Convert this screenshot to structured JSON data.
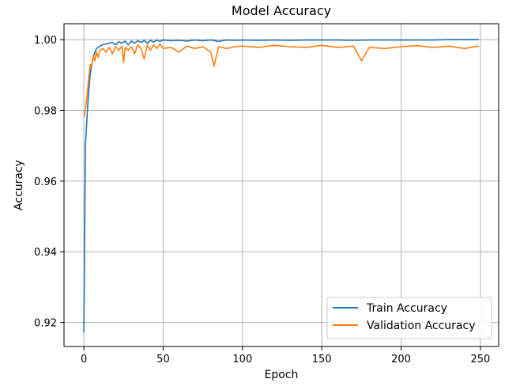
{
  "chart_data": {
    "type": "line",
    "title": "Model Accuracy",
    "xlabel": "Epoch",
    "ylabel": "Accuracy",
    "xlim": [
      -12.5,
      261.5
    ],
    "ylim": [
      0.9132,
      1.0045
    ],
    "xticks": [
      0,
      50,
      100,
      150,
      200,
      250
    ],
    "yticks": [
      0.92,
      0.94,
      0.96,
      0.98,
      1.0
    ],
    "ytick_labels": [
      "0.92",
      "0.94",
      "0.96",
      "0.98",
      "1.00"
    ],
    "grid": true,
    "legend_position": "bottom-right",
    "series": [
      {
        "name": "Train Accuracy",
        "color": "#1f77b4",
        "x": [
          0,
          1,
          2,
          3,
          4,
          5,
          6,
          7,
          8,
          9,
          10,
          12,
          14,
          16,
          18,
          20,
          22,
          24,
          26,
          28,
          30,
          32,
          34,
          36,
          38,
          40,
          42,
          44,
          46,
          48,
          50,
          55,
          60,
          65,
          70,
          75,
          80,
          85,
          90,
          95,
          100,
          110,
          120,
          130,
          140,
          150,
          160,
          170,
          180,
          190,
          200,
          210,
          220,
          230,
          240,
          249
        ],
        "values": [
          0.9172,
          0.97,
          0.978,
          0.985,
          0.99,
          0.993,
          0.995,
          0.9965,
          0.9975,
          0.9978,
          0.9982,
          0.9986,
          0.9988,
          0.999,
          0.9992,
          0.9985,
          0.9994,
          0.999,
          0.9996,
          0.9985,
          0.9996,
          0.999,
          0.9997,
          0.9992,
          0.9998,
          0.999,
          0.9998,
          0.9993,
          0.9999,
          0.9995,
          0.9999,
          0.9997,
          0.9998,
          0.9996,
          0.9999,
          0.9997,
          0.9999,
          0.9995,
          0.9999,
          0.9998,
          0.9999,
          0.9998,
          0.9999,
          0.9998,
          0.9999,
          0.9999,
          0.9999,
          0.9998,
          0.9999,
          0.9999,
          0.9999,
          0.9999,
          0.9999,
          1.0,
          1.0,
          1.0
        ]
      },
      {
        "name": "Validation Accuracy",
        "color": "#ff7f0e",
        "x": [
          0,
          1,
          2,
          3,
          4,
          5,
          6,
          7,
          8,
          9,
          10,
          12,
          14,
          16,
          18,
          20,
          22,
          24,
          25,
          26,
          28,
          30,
          32,
          34,
          36,
          38,
          40,
          42,
          44,
          46,
          48,
          50,
          55,
          60,
          65,
          70,
          75,
          80,
          82,
          85,
          90,
          95,
          100,
          110,
          120,
          130,
          140,
          150,
          160,
          170,
          175,
          180,
          190,
          200,
          210,
          220,
          230,
          240,
          249
        ],
        "values": [
          0.978,
          0.98,
          0.984,
          0.989,
          0.993,
          0.9925,
          0.9955,
          0.994,
          0.9965,
          0.995,
          0.997,
          0.9975,
          0.9965,
          0.9978,
          0.996,
          0.998,
          0.997,
          0.9982,
          0.9935,
          0.9978,
          0.997,
          0.998,
          0.996,
          0.9985,
          0.9975,
          0.9945,
          0.9985,
          0.997,
          0.9985,
          0.9975,
          0.9988,
          0.9975,
          0.9978,
          0.9965,
          0.9982,
          0.9975,
          0.998,
          0.9965,
          0.9925,
          0.998,
          0.9975,
          0.998,
          0.9982,
          0.9978,
          0.9984,
          0.998,
          0.9978,
          0.9984,
          0.9978,
          0.9982,
          0.994,
          0.9978,
          0.9975,
          0.998,
          0.9983,
          0.9978,
          0.9982,
          0.9975,
          0.9982
        ]
      }
    ]
  }
}
